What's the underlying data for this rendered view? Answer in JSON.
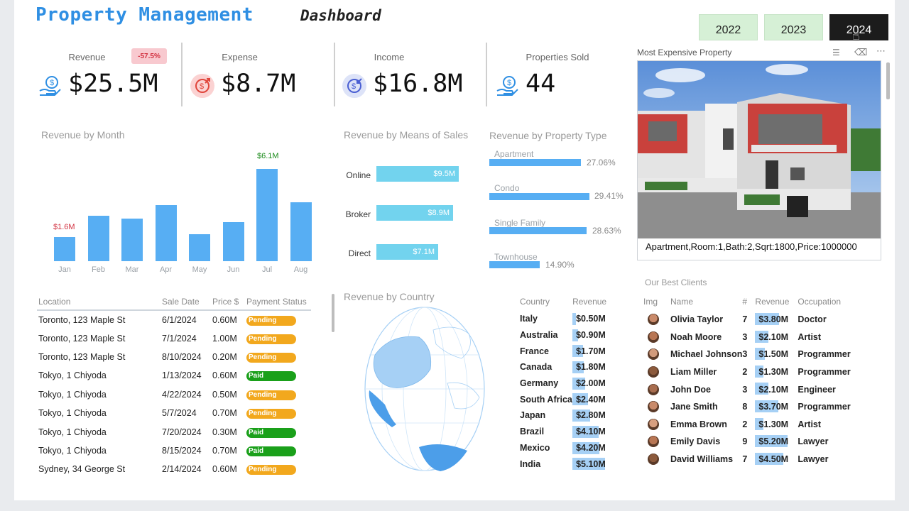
{
  "header": {
    "title_main": "Property Management",
    "title_sub": "Dashboard"
  },
  "years": [
    {
      "label": "2022",
      "active": false
    },
    {
      "label": "2023",
      "active": false
    },
    {
      "label": "2024",
      "active": true
    }
  ],
  "kpis": [
    {
      "label": "Revenue",
      "value": "$25.5M",
      "badge": "-57.5%"
    },
    {
      "label": "Expense",
      "value": "$8.7M"
    },
    {
      "label": "Income",
      "value": "$16.8M"
    },
    {
      "label": "Properties Sold",
      "value": "44"
    }
  ],
  "revenue_by_month": {
    "title": "Revenue by Month",
    "max_label": "$6.1M",
    "min_label": "$1.6M"
  },
  "means_of_sales": {
    "title": "Revenue by Means of Sales",
    "items": [
      {
        "label": "Online",
        "value": "$9.5M"
      },
      {
        "label": "Broker",
        "value": "$8.9M"
      },
      {
        "label": "Direct",
        "value": "$7.1M"
      }
    ]
  },
  "property_type": {
    "title": "Revenue by Property Type",
    "items": [
      {
        "label": "Apartment",
        "pct": "27.06%"
      },
      {
        "label": "Condo",
        "pct": "29.41%"
      },
      {
        "label": "Single Family",
        "pct": "28.63%"
      },
      {
        "label": "Townhouse",
        "pct": "14.90%"
      }
    ]
  },
  "most_expensive": {
    "title": "Most Expensive Property",
    "caption": "Apartment,Room:1,Bath:2,Sqrt:1800,Price:1000000"
  },
  "locations": {
    "headers": [
      "Location",
      "Sale Date",
      "Price $",
      "Payment Status"
    ],
    "rows": [
      [
        "Toronto, 123 Maple St",
        "6/1/2024",
        "0.60M",
        "Pending"
      ],
      [
        "Toronto, 123 Maple St",
        "7/1/2024",
        "1.00M",
        "Pending"
      ],
      [
        "Toronto, 123 Maple St",
        "8/10/2024",
        "0.20M",
        "Pending"
      ],
      [
        "Tokyo, 1 Chiyoda",
        "1/13/2024",
        "0.60M",
        "Paid"
      ],
      [
        "Tokyo, 1 Chiyoda",
        "4/22/2024",
        "0.50M",
        "Pending"
      ],
      [
        "Tokyo, 1 Chiyoda",
        "5/7/2024",
        "0.70M",
        "Pending"
      ],
      [
        "Tokyo, 1 Chiyoda",
        "7/20/2024",
        "0.30M",
        "Paid"
      ],
      [
        "Tokyo, 1 Chiyoda",
        "8/15/2024",
        "0.70M",
        "Paid"
      ],
      [
        "Sydney, 34 George St",
        "2/14/2024",
        "0.60M",
        "Pending"
      ]
    ]
  },
  "country": {
    "title": "Revenue by Country",
    "headers": [
      "Country",
      "Revenue"
    ],
    "rows": [
      {
        "name": "Italy",
        "value": "$0.50M",
        "num": 0.5
      },
      {
        "name": "Australia",
        "value": "$0.90M",
        "num": 0.9
      },
      {
        "name": "France",
        "value": "$1.70M",
        "num": 1.7
      },
      {
        "name": "Canada",
        "value": "$1.80M",
        "num": 1.8
      },
      {
        "name": "Germany",
        "value": "$2.00M",
        "num": 2.0
      },
      {
        "name": "South Africa",
        "value": "$2.40M",
        "num": 2.4
      },
      {
        "name": "Japan",
        "value": "$2.80M",
        "num": 2.8
      },
      {
        "name": "Brazil",
        "value": "$4.10M",
        "num": 4.1
      },
      {
        "name": "Mexico",
        "value": "$4.20M",
        "num": 4.2
      },
      {
        "name": "India",
        "value": "$5.10M",
        "num": 5.1
      }
    ]
  },
  "clients": {
    "title": "Our Best Clients",
    "headers": [
      "Img",
      "Name",
      "#",
      "Revenue",
      "Occupation"
    ],
    "rows": [
      {
        "name": "Olivia Taylor",
        "count": "7",
        "revenue": "$3.80M",
        "num": 3.8,
        "occupation": "Doctor"
      },
      {
        "name": "Noah Moore",
        "count": "3",
        "revenue": "$2.10M",
        "num": 2.1,
        "occupation": "Artist"
      },
      {
        "name": "Michael Johnson",
        "count": "3",
        "revenue": "$1.50M",
        "num": 1.5,
        "occupation": "Programmer"
      },
      {
        "name": "Liam Miller",
        "count": "2",
        "revenue": "$1.30M",
        "num": 1.3,
        "occupation": "Programmer"
      },
      {
        "name": "John Doe",
        "count": "3",
        "revenue": "$2.10M",
        "num": 2.1,
        "occupation": "Engineer"
      },
      {
        "name": "Jane Smith",
        "count": "8",
        "revenue": "$3.70M",
        "num": 3.7,
        "occupation": "Programmer"
      },
      {
        "name": "Emma Brown",
        "count": "2",
        "revenue": "$1.30M",
        "num": 1.3,
        "occupation": "Artist"
      },
      {
        "name": "Emily Davis",
        "count": "9",
        "revenue": "$5.20M",
        "num": 5.2,
        "occupation": "Lawyer"
      },
      {
        "name": "David Williams",
        "count": "7",
        "revenue": "$4.50M",
        "num": 4.5,
        "occupation": "Lawyer"
      }
    ]
  },
  "colors": {
    "title_blue": "#2f8fe3",
    "bar_blue": "#57aef3",
    "means_bar": "#72d3ee",
    "pending": "#f2a81d",
    "paid": "#1aa01a",
    "selected_year": "#1c1c1c",
    "year_btn": "#d6f0d6"
  },
  "chart_data": [
    {
      "type": "bar",
      "title": "Revenue by Month",
      "categories": [
        "Jan",
        "Feb",
        "Mar",
        "Apr",
        "May",
        "Jun",
        "Jul",
        "Aug"
      ],
      "values": [
        1.6,
        3.0,
        2.8,
        3.7,
        1.8,
        2.6,
        6.1,
        3.9
      ],
      "ylim": [
        0,
        6.1
      ]
    },
    {
      "type": "bar",
      "title": "Revenue by Means of Sales",
      "categories": [
        "Online",
        "Broker",
        "Direct"
      ],
      "values": [
        9.5,
        8.9,
        7.1
      ]
    },
    {
      "type": "bar",
      "title": "Revenue by Property Type",
      "categories": [
        "Apartment",
        "Condo",
        "Single Family",
        "Townhouse"
      ],
      "values": [
        27.06,
        29.41,
        28.63,
        14.9
      ]
    }
  ]
}
